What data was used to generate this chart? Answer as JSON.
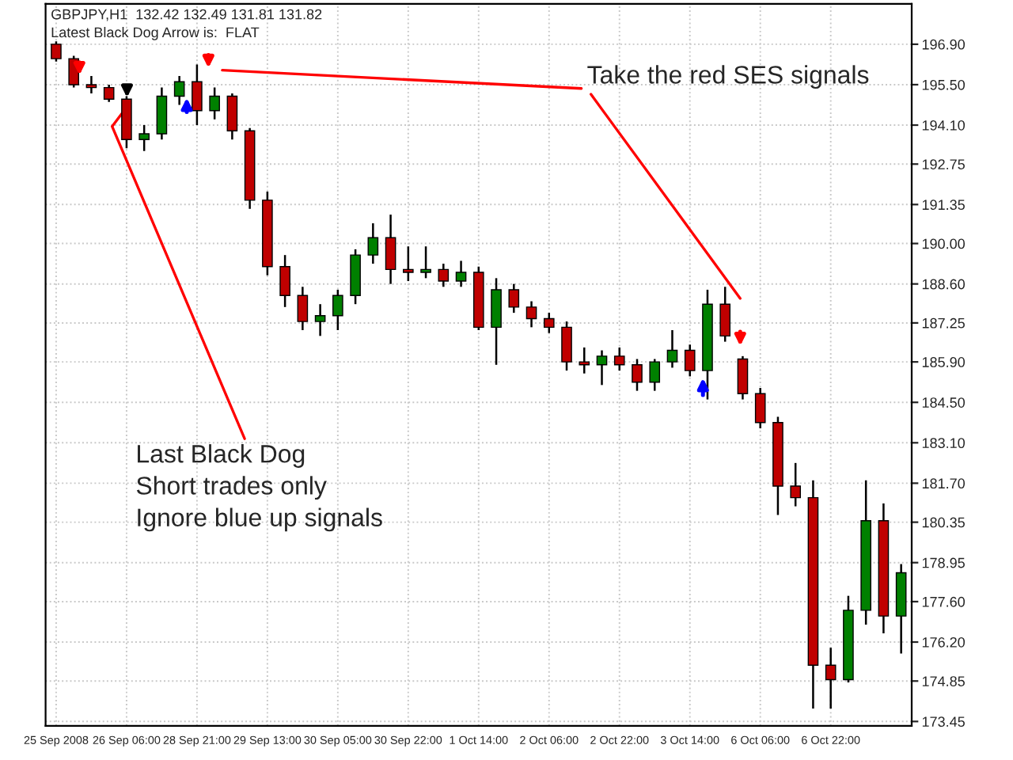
{
  "chart_data": {
    "type": "candlestick",
    "title": "GBPJPY,H1  132.42 132.49 131.81 131.82",
    "subtitle": "Latest Black Dog Arrow is:  FLAT",
    "annotations": [
      "Take the red SES signals",
      "Last Black Dog\nShort trades only\nIgnore blue up signals"
    ],
    "categories": [
      "25 Sep 2008",
      null,
      null,
      null,
      "26 Sep 06:00",
      null,
      null,
      null,
      "28 Sep 21:00",
      null,
      null,
      null,
      "29 Sep 13:00",
      null,
      null,
      null,
      "30 Sep 05:00",
      null,
      null,
      null,
      "30 Sep 22:00",
      null,
      null,
      null,
      "1 Oct 14:00",
      null,
      null,
      null,
      "2 Oct 06:00",
      null,
      null,
      null,
      "2 Oct 22:00",
      null,
      null,
      null,
      "3 Oct 14:00",
      null,
      null,
      null,
      "6 Oct 06:00",
      null,
      null,
      null,
      "6 Oct 22:00",
      null,
      null,
      null,
      null
    ],
    "ohlc": [
      [
        196.9,
        197.0,
        196.3,
        196.4
      ],
      [
        196.4,
        196.5,
        195.4,
        195.5
      ],
      [
        195.5,
        195.8,
        195.2,
        195.4
      ],
      [
        195.4,
        195.5,
        194.9,
        195.0
      ],
      [
        195.0,
        195.1,
        193.3,
        193.6
      ],
      [
        193.6,
        194.1,
        193.2,
        193.8
      ],
      [
        193.8,
        195.4,
        193.6,
        195.1
      ],
      [
        195.1,
        195.8,
        194.8,
        195.6
      ],
      [
        195.6,
        196.2,
        194.1,
        194.6
      ],
      [
        194.6,
        195.4,
        194.3,
        195.1
      ],
      [
        195.1,
        195.2,
        193.6,
        193.9
      ],
      [
        193.9,
        194.0,
        191.2,
        191.5
      ],
      [
        191.5,
        191.8,
        188.9,
        189.2
      ],
      [
        189.2,
        189.6,
        187.8,
        188.2
      ],
      [
        188.2,
        188.5,
        187.0,
        187.3
      ],
      [
        187.3,
        187.9,
        186.8,
        187.5
      ],
      [
        187.5,
        188.4,
        187.0,
        188.2
      ],
      [
        188.2,
        189.8,
        187.9,
        189.6
      ],
      [
        189.6,
        190.7,
        189.3,
        190.2
      ],
      [
        190.2,
        191.0,
        188.6,
        189.1
      ],
      [
        189.1,
        189.9,
        188.7,
        189.0
      ],
      [
        189.0,
        189.9,
        188.8,
        189.1
      ],
      [
        189.1,
        189.3,
        188.5,
        188.7
      ],
      [
        188.7,
        189.4,
        188.5,
        189.0
      ],
      [
        189.0,
        189.2,
        187.0,
        187.1
      ],
      [
        187.1,
        188.8,
        185.8,
        188.4
      ],
      [
        188.4,
        188.6,
        187.6,
        187.8
      ],
      [
        187.8,
        188.0,
        187.1,
        187.4
      ],
      [
        187.4,
        187.6,
        186.9,
        187.1
      ],
      [
        187.1,
        187.3,
        185.6,
        185.9
      ],
      [
        185.9,
        186.4,
        185.5,
        185.8
      ],
      [
        185.8,
        186.3,
        185.1,
        186.1
      ],
      [
        186.1,
        186.4,
        185.6,
        185.8
      ],
      [
        185.8,
        186.0,
        184.9,
        185.2
      ],
      [
        185.2,
        186.0,
        184.9,
        185.9
      ],
      [
        185.9,
        187.0,
        185.7,
        186.3
      ],
      [
        186.3,
        186.5,
        185.4,
        185.6
      ],
      [
        185.6,
        188.4,
        184.6,
        187.9
      ],
      [
        187.9,
        188.5,
        186.6,
        186.8
      ],
      [
        186.0,
        186.1,
        184.6,
        184.8
      ],
      [
        184.8,
        185.0,
        183.6,
        183.8
      ],
      [
        183.8,
        184.0,
        180.6,
        181.6
      ],
      [
        181.6,
        182.4,
        180.9,
        181.2
      ],
      [
        181.2,
        181.8,
        173.9,
        175.4
      ],
      [
        175.4,
        176.0,
        173.9,
        174.9
      ],
      [
        174.9,
        177.8,
        174.8,
        177.3
      ],
      [
        177.3,
        181.8,
        176.8,
        180.4
      ],
      [
        180.4,
        181.0,
        176.5,
        177.1
      ],
      [
        177.1,
        178.9,
        175.8,
        178.6
      ]
    ],
    "colors": [
      "#c00000",
      "#c00000",
      "#c00000",
      "#c00000",
      "#c00000",
      "#008000",
      "#008000",
      "#008000",
      "#c00000",
      "#008000",
      "#c00000",
      "#c00000",
      "#c00000",
      "#c00000",
      "#c00000",
      "#008000",
      "#008000",
      "#008000",
      "#008000",
      "#c00000",
      "#c00000",
      "#008000",
      "#c00000",
      "#008000",
      "#c00000",
      "#008000",
      "#c00000",
      "#c00000",
      "#c00000",
      "#c00000",
      "#c00000",
      "#008000",
      "#c00000",
      "#c00000",
      "#008000",
      "#008000",
      "#c00000",
      "#008000",
      "#c00000",
      "#c00000",
      "#c00000",
      "#c00000",
      "#c00000",
      "#c00000",
      "#c00000",
      "#008000",
      "#008000",
      "#c00000",
      "#008000"
    ],
    "ylim": [
      173.3,
      198.3
    ],
    "yticks": [
      {
        "value": 196.9,
        "label": "196.90"
      },
      {
        "value": 195.5,
        "label": "195.50"
      },
      {
        "value": 194.1,
        "label": "194.10"
      },
      {
        "value": 192.75,
        "label": "192.75"
      },
      {
        "value": 191.35,
        "label": "191.35"
      },
      {
        "value": 190.0,
        "label": "190.00"
      },
      {
        "value": 188.6,
        "label": "188.60"
      },
      {
        "value": 187.25,
        "label": "187.25"
      },
      {
        "value": 185.9,
        "label": "185.90"
      },
      {
        "value": 184.5,
        "label": "184.50"
      },
      {
        "value": 183.1,
        "label": "183.10"
      },
      {
        "value": 181.7,
        "label": "181.70"
      },
      {
        "value": 180.35,
        "label": "180.35"
      },
      {
        "value": 178.95,
        "label": "178.95"
      },
      {
        "value": 177.6,
        "label": "177.60"
      },
      {
        "value": 176.2,
        "label": "176.20"
      },
      {
        "value": 174.85,
        "label": "174.85"
      },
      {
        "value": 173.45,
        "label": "173.45"
      }
    ],
    "grid": true
  }
}
